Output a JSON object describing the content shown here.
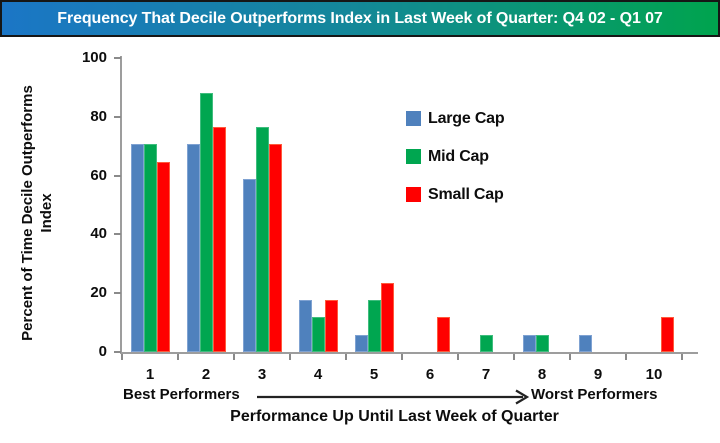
{
  "title_bar": {
    "title": "Frequency That Decile Outperforms Index in Last Week of Quarter: Q4 02 - Q1 07"
  },
  "colors": {
    "large_cap": "#4F81BD",
    "large_cap_border": "#7FA2D2",
    "mid_cap": "#00A650",
    "mid_cap_border": "#3FBD7E",
    "small_cap": "#FF0000",
    "small_cap_border": "#FF5A3C",
    "title_gradient_left": "#1B76C6",
    "title_gradient_mid": "#14879A",
    "title_gradient_right": "#00A44E",
    "axis_line": "#9D9D9D",
    "tick_mark": "#8A8A8A",
    "text": "#0D0D0D"
  },
  "chart_data": {
    "type": "bar",
    "title": "Frequency That Decile Outperforms Index in Last Week of Quarter: Q4 02 - Q1 07",
    "categories": [
      "1",
      "2",
      "3",
      "4",
      "5",
      "6",
      "7",
      "8",
      "9",
      "10"
    ],
    "series": [
      {
        "name": "Large Cap",
        "color_key": "large_cap",
        "border_key": "large_cap_border",
        "values": [
          70.6,
          70.6,
          58.8,
          17.6,
          5.9,
          0,
          0,
          5.9,
          5.9,
          0
        ]
      },
      {
        "name": "Mid Cap",
        "color_key": "mid_cap",
        "border_key": "mid_cap_border",
        "values": [
          70.6,
          88.2,
          76.5,
          11.8,
          17.6,
          0,
          5.9,
          5.9,
          0,
          0
        ]
      },
      {
        "name": "Small Cap",
        "color_key": "small_cap",
        "border_key": "small_cap_border",
        "values": [
          64.7,
          76.5,
          70.6,
          17.6,
          23.5,
          11.8,
          0,
          0,
          0,
          11.8
        ]
      }
    ],
    "xlabel": "Performance Up Until Last Week of Quarter",
    "ylabel": "Percent of Time Decile Outperforms Index",
    "ylim": [
      0,
      100
    ],
    "yticks": [
      0,
      20,
      40,
      60,
      80,
      100
    ],
    "grid": false,
    "legend_position": "inside-upper-right",
    "annotations": {
      "best": "Best Performers",
      "worst": "Worst Performers",
      "arrow": "best-to-worst-rightward"
    }
  },
  "axis_text": {
    "y_title_line1": "Percent of Time Decile Outperforms",
    "y_title_line2": "Index",
    "x_title": "Performance Up Until Last Week of Quarter",
    "best_label": "Best Performers",
    "worst_label": "Worst Performers"
  },
  "legend": {
    "items": [
      {
        "label": "Large Cap",
        "color_key": "large_cap"
      },
      {
        "label": "Mid Cap",
        "color_key": "mid_cap"
      },
      {
        "label": "Small Cap",
        "color_key": "small_cap"
      }
    ]
  }
}
